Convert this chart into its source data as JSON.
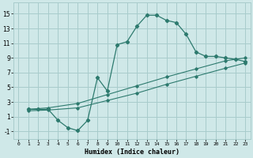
{
  "xlabel": "Humidex (Indice chaleur)",
  "bg_color": "#cfe8e8",
  "grid_color": "#a8cccc",
  "line_color": "#2d7a6e",
  "xlim": [
    -0.5,
    23.5
  ],
  "ylim": [
    -2.0,
    16.5
  ],
  "xticks": [
    0,
    1,
    2,
    3,
    4,
    5,
    6,
    7,
    8,
    9,
    10,
    11,
    12,
    13,
    14,
    15,
    16,
    17,
    18,
    19,
    20,
    21,
    22,
    23
  ],
  "yticks": [
    -1,
    1,
    3,
    5,
    7,
    9,
    11,
    13,
    15
  ],
  "curve_x": [
    1,
    2,
    3,
    4,
    5,
    6,
    7,
    8,
    9,
    10,
    11,
    12,
    13,
    14,
    15,
    16,
    17,
    18,
    19,
    20,
    21,
    22,
    23
  ],
  "curve_y": [
    2.0,
    2.0,
    2.0,
    0.5,
    -0.5,
    -0.9,
    0.5,
    6.3,
    4.5,
    10.8,
    11.2,
    13.3,
    14.8,
    14.8,
    14.1,
    13.8,
    12.2,
    9.8,
    9.2,
    9.2,
    9.0,
    8.8,
    8.5
  ],
  "diag_upper_x": [
    1,
    3,
    6,
    9,
    12,
    15,
    18,
    21,
    23
  ],
  "diag_upper_y": [
    2.0,
    2.2,
    2.8,
    4.0,
    5.2,
    6.4,
    7.5,
    8.6,
    9.0
  ],
  "diag_lower_x": [
    1,
    3,
    6,
    9,
    12,
    15,
    18,
    21,
    23
  ],
  "diag_lower_y": [
    1.8,
    1.9,
    2.2,
    3.2,
    4.2,
    5.4,
    6.5,
    7.6,
    8.3
  ]
}
